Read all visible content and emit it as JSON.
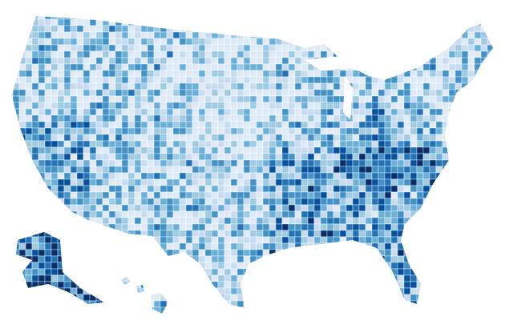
{
  "map": {
    "palette": [
      "#deebf7",
      "#c6dbef",
      "#9ecae1",
      "#6baed6",
      "#4292c6",
      "#2171b5",
      "#08519c",
      "#08306b"
    ]
  }
}
